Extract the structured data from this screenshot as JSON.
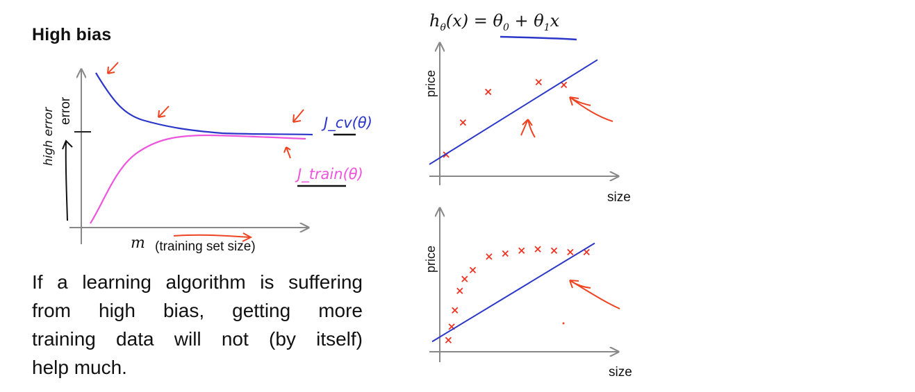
{
  "slide": {
    "title": "High bias",
    "body_lines": [
      "If a learning algorithm is suffering",
      "from high bias, getting more",
      "training data will not (by itself)",
      "help much."
    ]
  },
  "formula": {
    "lhs": "h",
    "lhs_sub": "θ",
    "text": "(x) = θ",
    "theta0_sub": "0",
    "plus": " + θ",
    "theta1_sub": "1",
    "tail": "x"
  },
  "colors": {
    "cv_curve": "#2a36c8",
    "train_curve": "#ee55dd",
    "annotation_red": "#ee4422",
    "axis": "#888888",
    "fit_line": "#2a36c8",
    "points": "#ee3322"
  },
  "learning_curve": {
    "y_label": "error",
    "x_label_symbol": "m",
    "x_label_caption": "(training set size)",
    "cv_label": "J_cv(θ)",
    "train_label": "J_train(θ)",
    "handwritten_left": "high error"
  },
  "chart_data": [
    {
      "type": "line",
      "title": "",
      "xlabel": "m (training set size)",
      "ylabel": "error",
      "series": [
        {
          "name": "J_cv(θ)",
          "x": [
            1,
            2,
            3,
            4,
            5,
            6,
            7,
            8,
            9,
            10
          ],
          "y": [
            0.9,
            0.66,
            0.56,
            0.52,
            0.505,
            0.5,
            0.5,
            0.5,
            0.5,
            0.5
          ]
        },
        {
          "name": "J_train(θ)",
          "x": [
            1,
            2,
            3,
            4,
            5,
            6,
            7,
            8,
            9,
            10
          ],
          "y": [
            0.02,
            0.3,
            0.43,
            0.48,
            0.49,
            0.49,
            0.49,
            0.49,
            0.49,
            0.48
          ]
        }
      ]
    },
    {
      "type": "scatter",
      "xlabel": "size",
      "ylabel": "price",
      "points": {
        "x": [
          1,
          2,
          3.5,
          6.5,
          8
        ],
        "y": [
          1.2,
          3.5,
          5.7,
          6.4,
          6.2
        ]
      },
      "fit_line": {
        "x": [
          0,
          10
        ],
        "y": [
          0.5,
          8
        ]
      }
    },
    {
      "type": "scatter",
      "xlabel": "size",
      "ylabel": "price",
      "points": {
        "x": [
          1,
          1.2,
          1.4,
          1.7,
          2,
          2.5,
          3.5,
          4.5,
          5.5,
          6.5,
          7.5,
          8.5,
          9.5
        ],
        "y": [
          0.5,
          1.4,
          2.5,
          3.8,
          4.6,
          5.2,
          6.1,
          6.3,
          6.5,
          6.6,
          6.5,
          6.4,
          6.4
        ]
      },
      "fit_line": {
        "x": [
          0,
          10
        ],
        "y": [
          0.4,
          7
        ]
      }
    }
  ],
  "plot_labels": {
    "price": "price",
    "size": "size"
  }
}
